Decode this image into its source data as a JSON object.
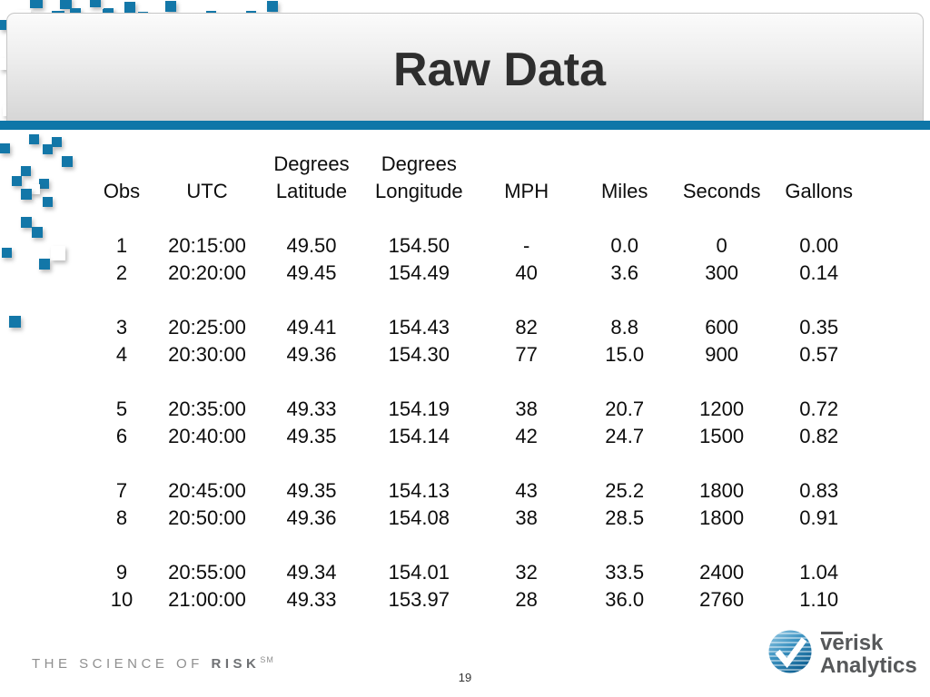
{
  "slide": {
    "title": "Raw Data",
    "page_number": "19"
  },
  "table": {
    "header_top": [
      "",
      "",
      "Degrees",
      "Degrees",
      "",
      "",
      "",
      ""
    ],
    "columns": [
      "Obs",
      "UTC",
      "Latitude",
      "Longitude",
      "MPH",
      "Miles",
      "Seconds",
      "Gallons"
    ],
    "group_size": 2,
    "rows": [
      [
        "1",
        "20:15:00",
        "49.50",
        "154.50",
        "-",
        "0.0",
        "0",
        "0.00"
      ],
      [
        "2",
        "20:20:00",
        "49.45",
        "154.49",
        "40",
        "3.6",
        "300",
        "0.14"
      ],
      [
        "3",
        "20:25:00",
        "49.41",
        "154.43",
        "82",
        "8.8",
        "600",
        "0.35"
      ],
      [
        "4",
        "20:30:00",
        "49.36",
        "154.30",
        "77",
        "15.0",
        "900",
        "0.57"
      ],
      [
        "5",
        "20:35:00",
        "49.33",
        "154.19",
        "38",
        "20.7",
        "1200",
        "0.72"
      ],
      [
        "6",
        "20:40:00",
        "49.35",
        "154.14",
        "42",
        "24.7",
        "1500",
        "0.82"
      ],
      [
        "7",
        "20:45:00",
        "49.35",
        "154.13",
        "43",
        "25.2",
        "1800",
        "0.83"
      ],
      [
        "8",
        "20:50:00",
        "49.36",
        "154.08",
        "38",
        "28.5",
        "1800",
        "0.91"
      ],
      [
        "9",
        "20:55:00",
        "49.34",
        "154.01",
        "32",
        "33.5",
        "2400",
        "1.04"
      ],
      [
        "10",
        "21:00:00",
        "49.33",
        "153.97",
        "28",
        "36.0",
        "2760",
        "1.10"
      ]
    ]
  },
  "footer": {
    "tagline": {
      "regular": "THE SCIENCE OF",
      "bold": "RISK",
      "superscript": "SM"
    },
    "logo": {
      "line1": "verisk",
      "line2": "Analytics"
    }
  },
  "colors": {
    "accent_blue": "#0e76a8",
    "square_teal": "#1377a8",
    "title_text": "#2e2e2e",
    "table_text": "#0d0d0d",
    "footer_gray": "#8f8f8f",
    "logo_gray": "#56585a"
  }
}
